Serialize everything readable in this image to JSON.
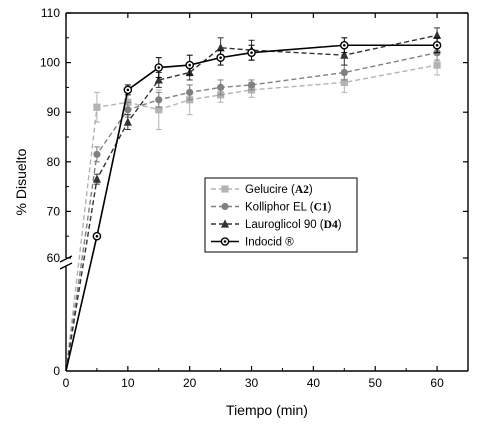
{
  "chart_data": {
    "type": "line",
    "xlabel": "Tiempo (min)",
    "ylabel": "% Disuelto",
    "xlim": [
      0,
      65
    ],
    "x_ticks": [
      0,
      10,
      20,
      30,
      40,
      50,
      60
    ],
    "y_lower_ticks": [
      0,
      60
    ],
    "y_upper_ticks": [
      60,
      70,
      80,
      90,
      100,
      110
    ],
    "y_axis_break": [
      0,
      60
    ],
    "ylim": [
      0,
      110
    ],
    "legend_position": "center",
    "series": [
      {
        "name": "Gelucire",
        "name_code": "A2",
        "color": "#b3b3b3",
        "line_style": "dashed",
        "marker": "square",
        "x": [
          0,
          5,
          10,
          15,
          20,
          25,
          30,
          45,
          60
        ],
        "y": [
          0,
          91,
          92,
          90.5,
          92.5,
          93.5,
          94.5,
          96,
          99.5
        ],
        "err": [
          0,
          3,
          2.5,
          4,
          3,
          1.5,
          1.5,
          2,
          2
        ]
      },
      {
        "name": "Kolliphor EL",
        "name_code": "C1",
        "color": "#808080",
        "line_style": "dashed",
        "marker": "circle",
        "x": [
          0,
          5,
          10,
          15,
          20,
          25,
          30,
          45,
          60
        ],
        "y": [
          0,
          81.5,
          90.5,
          92.5,
          94,
          95,
          95.5,
          98,
          102
        ],
        "err": [
          0,
          1.5,
          1.5,
          1.5,
          1.5,
          1.5,
          1,
          1.5,
          1.5
        ]
      },
      {
        "name": "Lauroglicol 90",
        "name_code": "D4",
        "color": "#333333",
        "line_style": "dashed",
        "marker": "triangle",
        "x": [
          0,
          5,
          10,
          15,
          20,
          25,
          30,
          45,
          60
        ],
        "y": [
          0,
          76.5,
          88,
          96.5,
          98,
          103,
          102.5,
          101.5,
          105.5
        ],
        "err": [
          0,
          1,
          1.5,
          1.5,
          1.5,
          2,
          2,
          2,
          1.5
        ]
      },
      {
        "name": "Indocid ®",
        "name_code": "",
        "color": "#000000",
        "line_style": "solid",
        "marker": "circle-dot",
        "x": [
          0,
          5,
          10,
          15,
          20,
          25,
          30,
          45,
          60
        ],
        "y": [
          0,
          65,
          94.5,
          99,
          99.5,
          101,
          102,
          103.5,
          103.5
        ],
        "err": [
          0,
          0.5,
          1,
          2,
          2,
          1.5,
          1.5,
          1.5,
          1.5
        ]
      }
    ]
  }
}
